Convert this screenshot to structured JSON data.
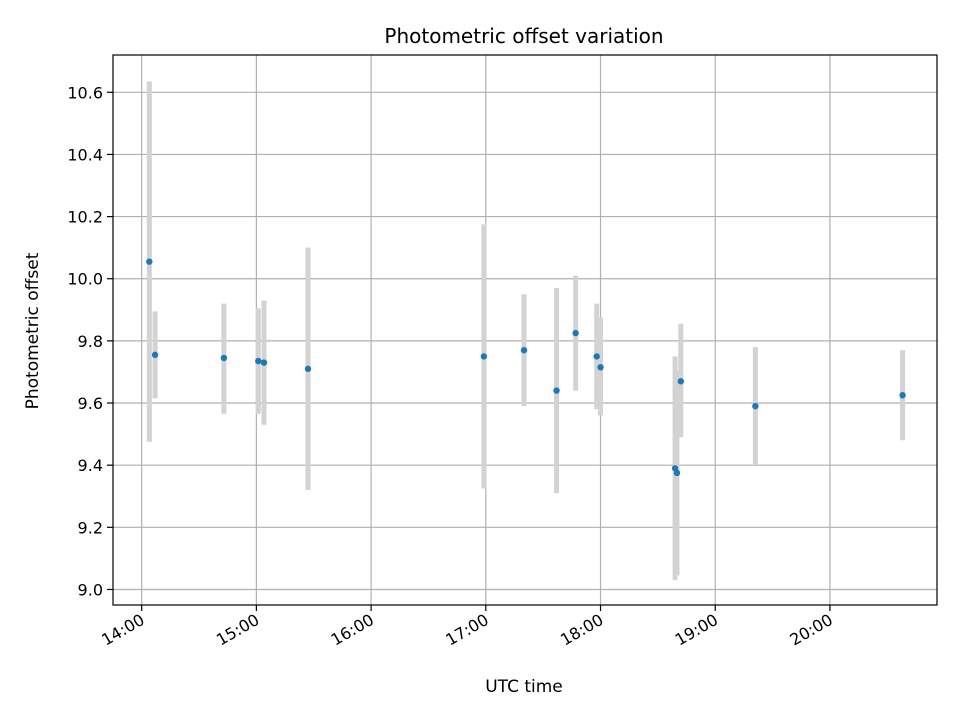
{
  "chart_data": {
    "type": "scatter",
    "title": "Photometric offset variation",
    "xlabel": "UTC time",
    "ylabel": "Photometric offset",
    "xlim": [
      "13:45",
      "20:56"
    ],
    "ylim": [
      8.95,
      10.72
    ],
    "xticks": [
      "14:00",
      "15:00",
      "16:00",
      "17:00",
      "18:00",
      "19:00",
      "20:00"
    ],
    "yticks": [
      "9.0",
      "9.2",
      "9.4",
      "9.6",
      "9.8",
      "10.0",
      "10.2",
      "10.4",
      "10.6"
    ],
    "grid": true,
    "colors": {
      "point": "#1f77b4",
      "errorbar": "#d3d3d3",
      "grid": "#b0b0b0"
    },
    "series": [
      {
        "points": [
          {
            "x": "14:04",
            "y": 10.055,
            "ylow": 9.475,
            "yhigh": 10.635
          },
          {
            "x": "14:07",
            "y": 9.755,
            "ylow": 9.615,
            "yhigh": 9.895
          },
          {
            "x": "14:43",
            "y": 9.745,
            "ylow": 9.565,
            "yhigh": 9.92
          },
          {
            "x": "15:01",
            "y": 9.735,
            "ylow": 9.565,
            "yhigh": 9.905
          },
          {
            "x": "15:04",
            "y": 9.73,
            "ylow": 9.53,
            "yhigh": 9.93
          },
          {
            "x": "15:27",
            "y": 9.71,
            "ylow": 9.32,
            "yhigh": 10.1
          },
          {
            "x": "16:59",
            "y": 9.75,
            "ylow": 9.325,
            "yhigh": 10.175
          },
          {
            "x": "17:20",
            "y": 9.77,
            "ylow": 9.59,
            "yhigh": 9.95
          },
          {
            "x": "17:37",
            "y": 9.64,
            "ylow": 9.31,
            "yhigh": 9.97
          },
          {
            "x": "17:47",
            "y": 9.825,
            "ylow": 9.64,
            "yhigh": 10.01
          },
          {
            "x": "17:58",
            "y": 9.75,
            "ylow": 9.58,
            "yhigh": 9.92
          },
          {
            "x": "18:00",
            "y": 9.715,
            "ylow": 9.56,
            "yhigh": 9.875
          },
          {
            "x": "18:39",
            "y": 9.39,
            "ylow": 9.03,
            "yhigh": 9.75
          },
          {
            "x": "18:40",
            "y": 9.375,
            "ylow": 9.045,
            "yhigh": 9.705
          },
          {
            "x": "18:42",
            "y": 9.67,
            "ylow": 9.49,
            "yhigh": 9.855
          },
          {
            "x": "19:21",
            "y": 9.59,
            "ylow": 9.4,
            "yhigh": 9.78
          },
          {
            "x": "20:38",
            "y": 9.625,
            "ylow": 9.48,
            "yhigh": 9.77
          }
        ]
      }
    ]
  }
}
